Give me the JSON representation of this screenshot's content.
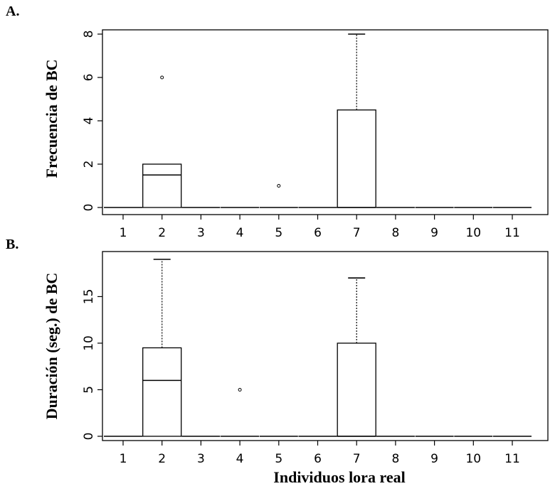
{
  "chart_data": [
    {
      "type": "box",
      "panel_label": "A.",
      "ylabel": "Frecuencia de BC",
      "xlabel": "",
      "categories": [
        "1",
        "2",
        "3",
        "4",
        "5",
        "6",
        "7",
        "8",
        "9",
        "10",
        "11"
      ],
      "ylim": [
        0,
        8
      ],
      "yticks": [
        0,
        2,
        4,
        6,
        8
      ],
      "boxes": [
        {
          "min": 0,
          "q1": 0,
          "median": 0,
          "q3": 0,
          "max": 0,
          "outliers": []
        },
        {
          "min": 0,
          "q1": 0,
          "median": 1.5,
          "q3": 2,
          "max": 2,
          "outliers": [
            6
          ]
        },
        {
          "min": 0,
          "q1": 0,
          "median": 0,
          "q3": 0,
          "max": 0,
          "outliers": []
        },
        {
          "min": 0,
          "q1": 0,
          "median": 0,
          "q3": 0,
          "max": 0,
          "outliers": []
        },
        {
          "min": 0,
          "q1": 0,
          "median": 0,
          "q3": 0,
          "max": 0,
          "outliers": [
            1
          ]
        },
        {
          "min": 0,
          "q1": 0,
          "median": 0,
          "q3": 0,
          "max": 0,
          "outliers": []
        },
        {
          "min": 0,
          "q1": 0,
          "median": 0,
          "q3": 4.5,
          "max": 8,
          "outliers": []
        },
        {
          "min": 0,
          "q1": 0,
          "median": 0,
          "q3": 0,
          "max": 0,
          "outliers": []
        },
        {
          "min": 0,
          "q1": 0,
          "median": 0,
          "q3": 0,
          "max": 0,
          "outliers": []
        },
        {
          "min": 0,
          "q1": 0,
          "median": 0,
          "q3": 0,
          "max": 0,
          "outliers": []
        },
        {
          "min": 0,
          "q1": 0,
          "median": 0,
          "q3": 0,
          "max": 0,
          "outliers": []
        }
      ]
    },
    {
      "type": "box",
      "panel_label": "B.",
      "ylabel": "Duración (seg.) de BC",
      "xlabel": "Individuos lora real",
      "categories": [
        "1",
        "2",
        "3",
        "4",
        "5",
        "6",
        "7",
        "8",
        "9",
        "10",
        "11"
      ],
      "ylim": [
        0,
        19
      ],
      "yticks": [
        0,
        5,
        10,
        15
      ],
      "boxes": [
        {
          "min": 0,
          "q1": 0,
          "median": 0,
          "q3": 0,
          "max": 0,
          "outliers": []
        },
        {
          "min": 0,
          "q1": 0,
          "median": 6,
          "q3": 9.5,
          "max": 19,
          "outliers": []
        },
        {
          "min": 0,
          "q1": 0,
          "median": 0,
          "q3": 0,
          "max": 0,
          "outliers": []
        },
        {
          "min": 0,
          "q1": 0,
          "median": 0,
          "q3": 0,
          "max": 0,
          "outliers": [
            5
          ]
        },
        {
          "min": 0,
          "q1": 0,
          "median": 0,
          "q3": 0,
          "max": 0,
          "outliers": []
        },
        {
          "min": 0,
          "q1": 0,
          "median": 0,
          "q3": 0,
          "max": 0,
          "outliers": []
        },
        {
          "min": 0,
          "q1": 0,
          "median": 0,
          "q3": 10,
          "max": 17,
          "outliers": []
        },
        {
          "min": 0,
          "q1": 0,
          "median": 0,
          "q3": 0,
          "max": 0,
          "outliers": []
        },
        {
          "min": 0,
          "q1": 0,
          "median": 0,
          "q3": 0,
          "max": 0,
          "outliers": []
        },
        {
          "min": 0,
          "q1": 0,
          "median": 0,
          "q3": 0,
          "max": 0,
          "outliers": []
        },
        {
          "min": 0,
          "q1": 0,
          "median": 0,
          "q3": 0,
          "max": 0,
          "outliers": []
        }
      ]
    }
  ]
}
